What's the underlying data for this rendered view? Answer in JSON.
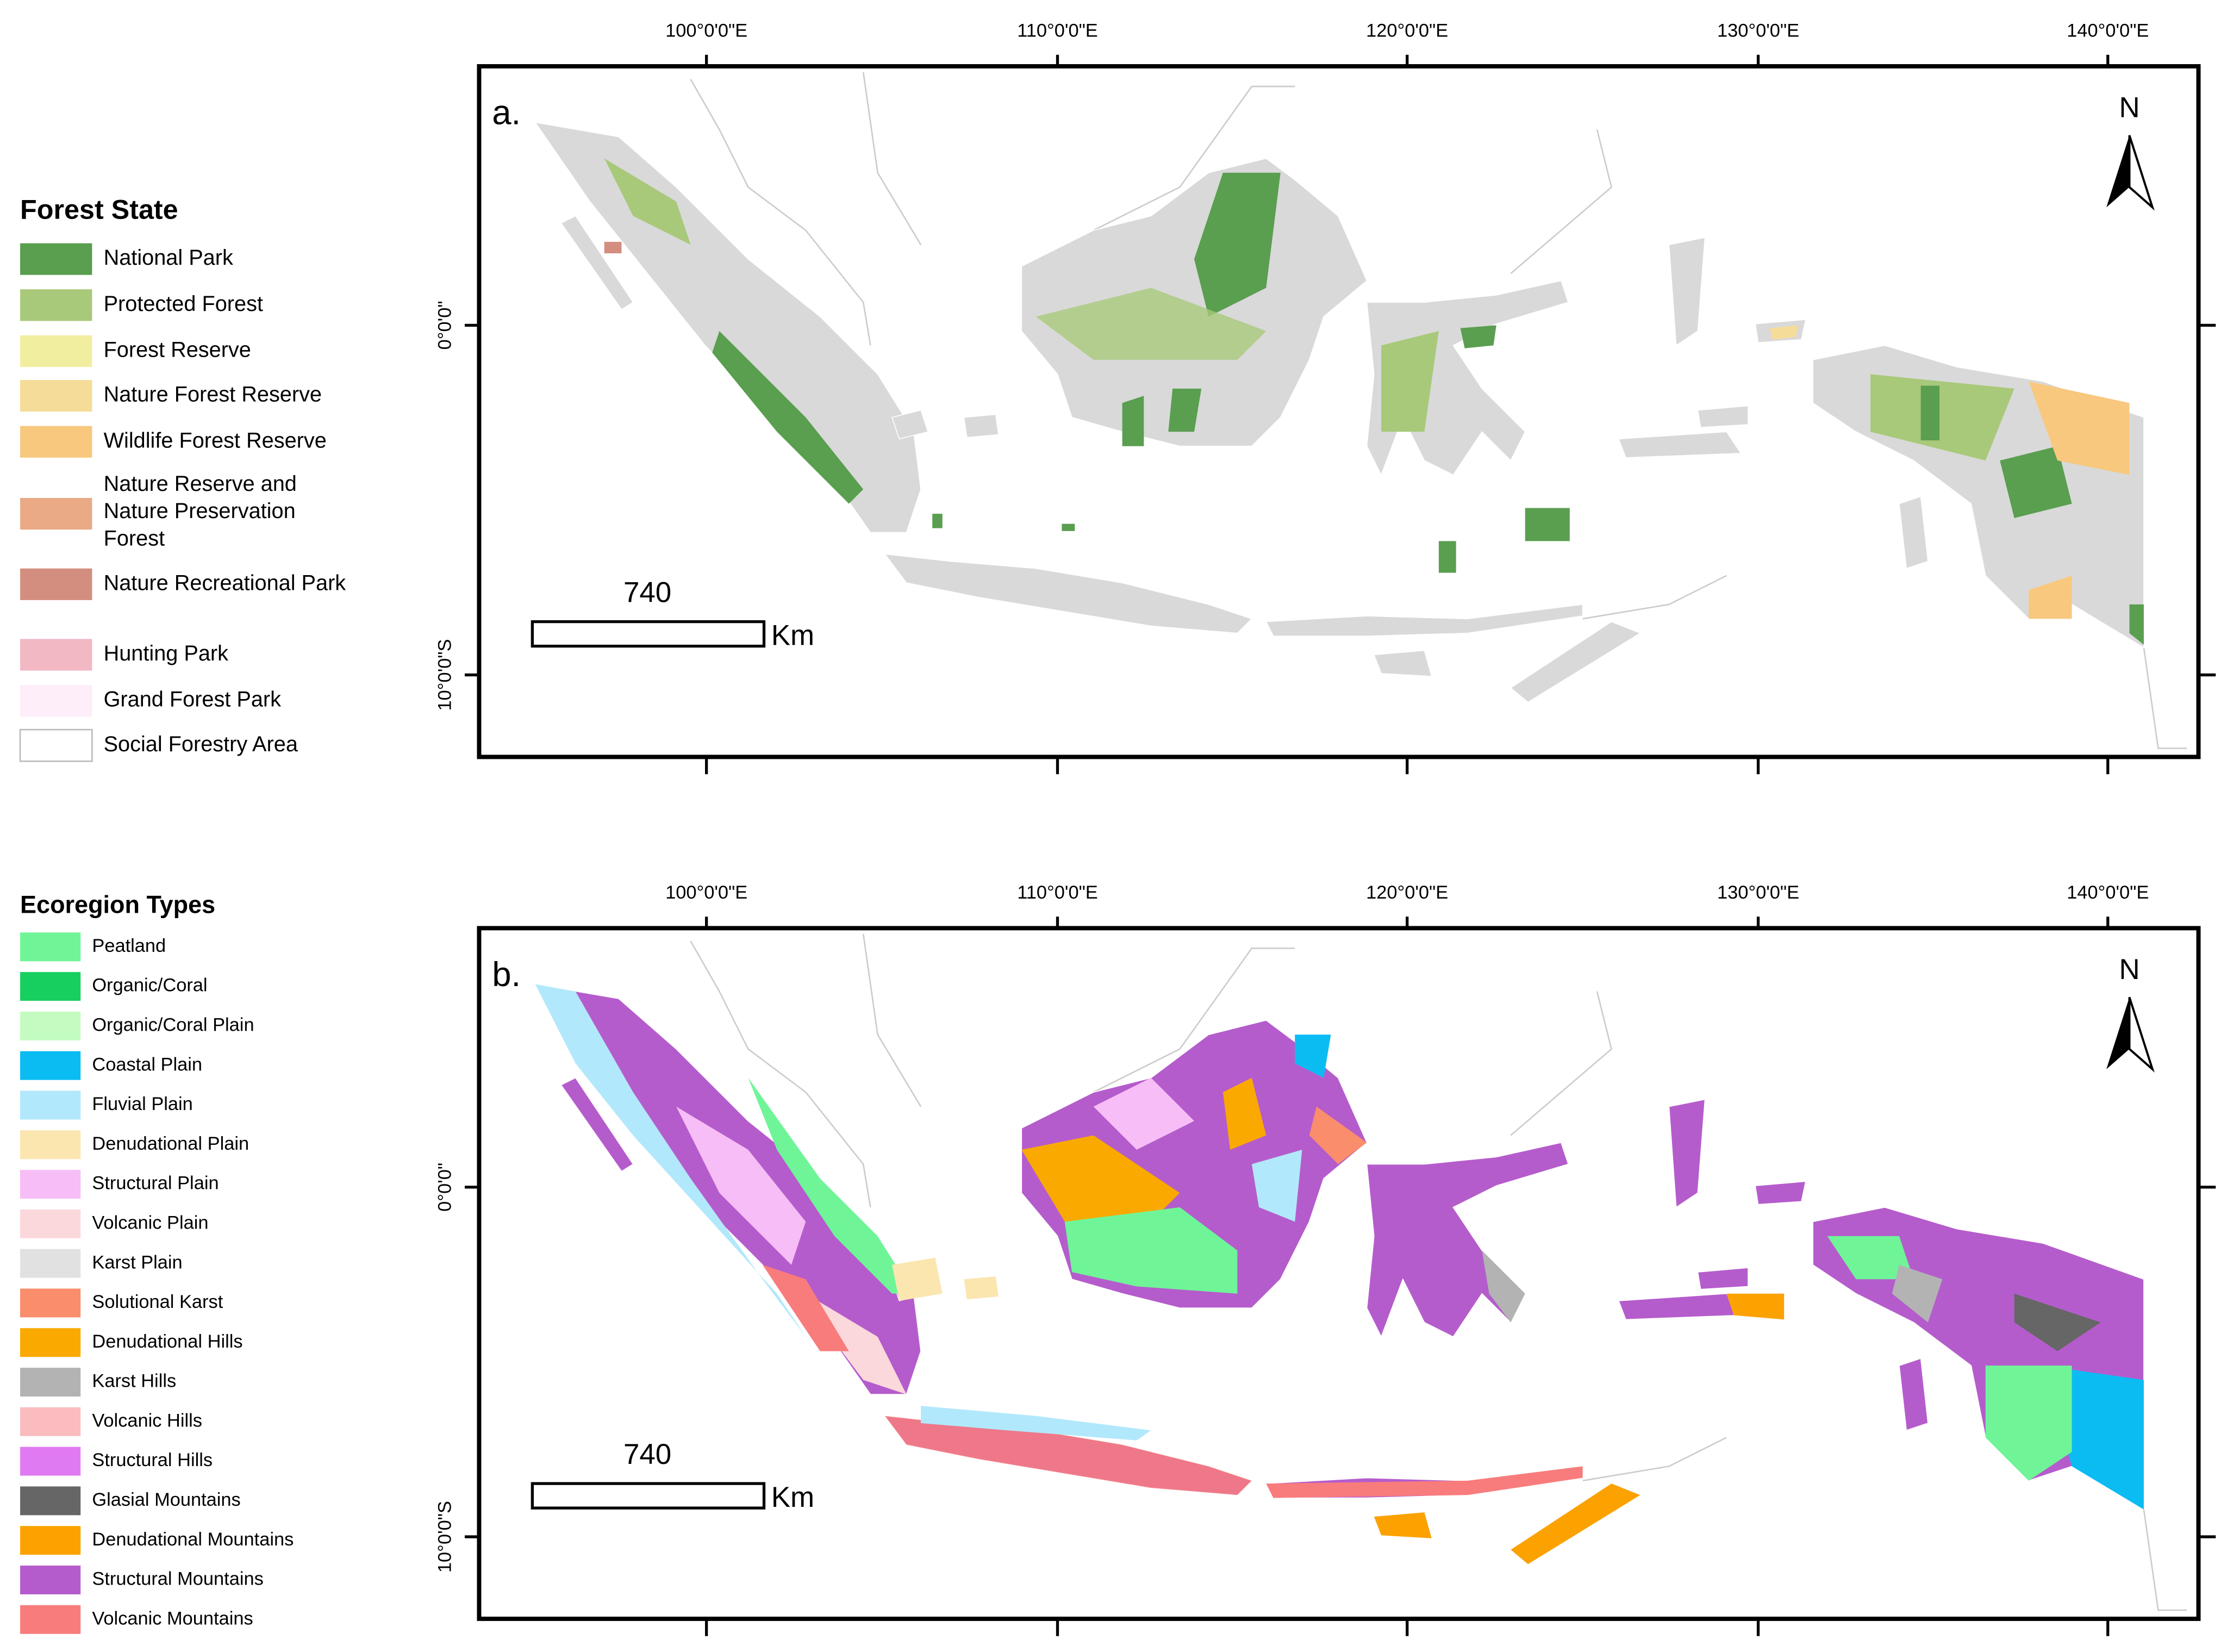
{
  "panels": [
    {
      "label": "a.",
      "legend": {
        "title": "Forest State",
        "items": [
          {
            "label": "National Park",
            "color": "#5a9e50"
          },
          {
            "label": "Protected Forest",
            "color": "#a8c97a"
          },
          {
            "label": "Forest Reserve",
            "color": "#f2eea0"
          },
          {
            "label": "Nature Forest Reserve",
            "color": "#f5dc98"
          },
          {
            "label": "Wildlife Forest Reserve",
            "color": "#f8c87e"
          },
          {
            "label": "Nature Reserve and Nature Preservation Forest",
            "color": "#e9aa85"
          },
          {
            "label": "Nature Recreational Park",
            "color": "#d48e80"
          },
          {
            "label": "Hunting Park",
            "color": "#f2b8c4"
          },
          {
            "label": "Grand Forest Park",
            "color": "#fdeefa"
          },
          {
            "label": "Social Forestry Area",
            "color": "#ffffff"
          }
        ]
      },
      "x_ticks": [
        "100°0'0\"E",
        "110°0'0\"E",
        "120°0'0\"E",
        "130°0'0\"E",
        "140°0'0\"E"
      ],
      "y_ticks": [
        "0°0'0\"",
        "10°0'0\"S"
      ],
      "north": "N",
      "scale": {
        "value": "740",
        "unit": "Km"
      }
    },
    {
      "label": "b.",
      "legend": {
        "title": "Ecoregion Types",
        "items": [
          {
            "label": "Peatland",
            "color": "#6ff598"
          },
          {
            "label": "Organic/Coral",
            "color": "#17cf5f"
          },
          {
            "label": "Organic/Coral Plain",
            "color": "#c4fbc0"
          },
          {
            "label": "Coastal Plain",
            "color": "#0bbcf3"
          },
          {
            "label": "Fluvial Plain",
            "color": "#b2e8fb"
          },
          {
            "label": "Denudational Plain",
            "color": "#fbe6b0"
          },
          {
            "label": "Structural Plain",
            "color": "#f6bdf6"
          },
          {
            "label": "Volcanic Plain",
            "color": "#fbd8dc"
          },
          {
            "label": "Karst Plain",
            "color": "#e1e1e1"
          },
          {
            "label": "Solutional Karst",
            "color": "#f98d6c"
          },
          {
            "label": "Denudational Hills",
            "color": "#f9a900"
          },
          {
            "label": "Karst Hills",
            "color": "#b3b3b3"
          },
          {
            "label": "Volcanic Hills",
            "color": "#fbbcbf"
          },
          {
            "label": "Structural Hills",
            "color": "#e07af2"
          },
          {
            "label": "Glasial Mountains",
            "color": "#666666"
          },
          {
            "label": "Denudational Mountains",
            "color": "#fba200"
          },
          {
            "label": "Structural Mountains",
            "color": "#b55ccc"
          },
          {
            "label": "Volcanic Mountains",
            "color": "#f87c7c"
          }
        ]
      },
      "x_ticks": [
        "100°0'0\"E",
        "110°0'0\"E",
        "120°0'0\"E",
        "130°0'0\"E",
        "140°0'0\"E"
      ],
      "y_ticks": [
        "0°0'0\"",
        "10°0'0\"S"
      ],
      "north": "N",
      "scale": {
        "value": "740",
        "unit": "Km"
      }
    }
  ]
}
